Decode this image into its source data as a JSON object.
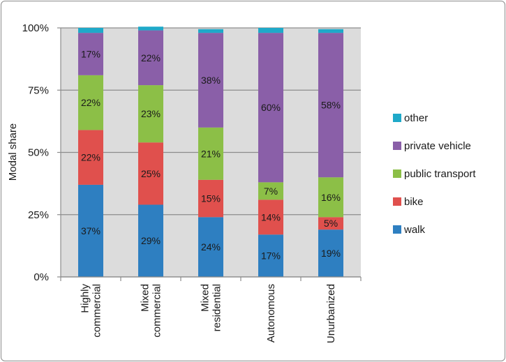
{
  "chart_data": {
    "type": "bar",
    "stacked": true,
    "percent": true,
    "ylabel": "Modal share",
    "ylim": [
      0,
      100
    ],
    "yticks": [
      "0%",
      "25%",
      "50%",
      "75%",
      "100%"
    ],
    "categories": [
      [
        "Highly",
        "commercial"
      ],
      [
        "Mixed",
        "commercial"
      ],
      [
        "Mixed",
        "residential"
      ],
      [
        "Autonomous"
      ],
      [
        "Unurbanized"
      ]
    ],
    "series": [
      {
        "name": "walk",
        "color": "#2e7fc1",
        "values": [
          37,
          29,
          24,
          17,
          19
        ],
        "labels": [
          "37%",
          "29%",
          "24%",
          "17%",
          "19%"
        ]
      },
      {
        "name": "bike",
        "color": "#e0504d",
        "values": [
          22,
          25,
          15,
          14,
          5
        ],
        "labels": [
          "22%",
          "25%",
          "15%",
          "14%",
          "5%"
        ]
      },
      {
        "name": "public transport",
        "color": "#8cbf47",
        "values": [
          22,
          23,
          21,
          7,
          16
        ],
        "labels": [
          "22%",
          "23%",
          "21%",
          "7%",
          "16%"
        ]
      },
      {
        "name": "private vehicle",
        "color": "#8a5fa8",
        "values": [
          17,
          22,
          38,
          60,
          58
        ],
        "labels": [
          "17%",
          "22%",
          "38%",
          "60%",
          "58%"
        ]
      },
      {
        "name": "other",
        "color": "#1fa9c9",
        "values": [
          2,
          1.5,
          1.5,
          2,
          1.5
        ],
        "labels": [
          "",
          "",
          "",
          "",
          ""
        ]
      }
    ],
    "legend_position": "right",
    "grid": true
  }
}
